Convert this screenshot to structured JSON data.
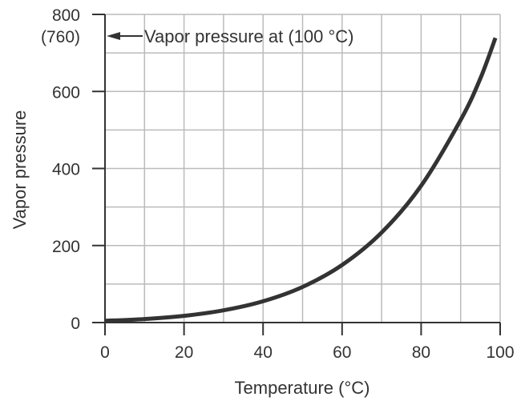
{
  "chart_data": {
    "type": "line",
    "title": "",
    "xlabel": "Temperature (°C)",
    "ylabel": "Vapor pressure",
    "xlim": [
      0,
      100
    ],
    "ylim": [
      0,
      800
    ],
    "x_ticks": [
      "0",
      "20",
      "40",
      "60",
      "80",
      "100"
    ],
    "y_ticks": [
      "0",
      "200",
      "400",
      "600",
      "800"
    ],
    "y_tick_extra": "(760)",
    "grid": true,
    "annotation": "Vapor pressure at (100 °C)",
    "series": [
      {
        "x": [
          0,
          10,
          20,
          30,
          40,
          50,
          60,
          70,
          80,
          90,
          95,
          98.8
        ],
        "y": [
          4.6,
          9.2,
          17.5,
          31.8,
          55.3,
          92.5,
          149.4,
          233.7,
          355.1,
          525.8,
          634,
          739
        ]
      }
    ],
    "colors": {
      "line": "#333333",
      "grid": "#bbbbbb",
      "axis": "#333333"
    }
  }
}
